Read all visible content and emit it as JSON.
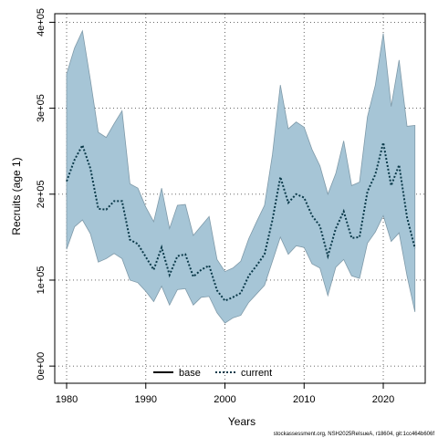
{
  "chart_data": {
    "type": "line",
    "xlabel": "Years",
    "ylabel": "Recruits (age 1)",
    "xlim": [
      1978.5,
      2025.3
    ],
    "ylim": [
      -20000,
      410000
    ],
    "x_ticks": [
      1980,
      1990,
      2000,
      2010,
      2020
    ],
    "x_tick_labels": [
      "1980",
      "1990",
      "2000",
      "2010",
      "2020"
    ],
    "y_ticks": [
      0,
      100000,
      200000,
      300000,
      400000
    ],
    "y_tick_labels": [
      "0e+00",
      "1e+05",
      "2e+05",
      "3e+05",
      "4e+05"
    ],
    "grid": true,
    "legend_position": "bottom-center",
    "footer_note": "stockassessment.org, NSH2025ReIsueA, r18604, git:1cc464b606f",
    "colors": {
      "band_fill": "#a6c5d6",
      "band_stroke": "#7f9aa9",
      "current_line": "#0b3a4a",
      "base_line": "#000000",
      "grid": "#555555"
    },
    "series": [
      {
        "name": "base",
        "style": "solid",
        "x": [],
        "y": []
      },
      {
        "name": "current",
        "style": "dotted",
        "x": [
          1980,
          1981,
          1982,
          1983,
          1984,
          1985,
          1986,
          1987,
          1988,
          1989,
          1990,
          1991,
          1992,
          1993,
          1994,
          1995,
          1996,
          1997,
          1998,
          1999,
          2000,
          2001,
          2002,
          2003,
          2004,
          2005,
          2006,
          2007,
          2008,
          2009,
          2010,
          2011,
          2012,
          2013,
          2014,
          2015,
          2016,
          2017,
          2018,
          2019,
          2020,
          2021,
          2022,
          2023,
          2024
        ],
        "y": [
          215000,
          240000,
          257000,
          230000,
          183000,
          182000,
          192000,
          192000,
          147000,
          142000,
          127000,
          112000,
          138000,
          106000,
          128000,
          130000,
          104000,
          112000,
          117000,
          88000,
          76000,
          80000,
          85000,
          105000,
          117000,
          130000,
          170000,
          220000,
          190000,
          200000,
          196000,
          175000,
          163000,
          128000,
          160000,
          180000,
          149000,
          150000,
          203000,
          223000,
          260000,
          210000,
          234000,
          173000,
          137000
        ]
      }
    ],
    "band": {
      "x": [
        1980,
        1981,
        1982,
        1983,
        1984,
        1985,
        1986,
        1987,
        1988,
        1989,
        1990,
        1991,
        1992,
        1993,
        1994,
        1995,
        1996,
        1997,
        1998,
        1999,
        2000,
        2001,
        2002,
        2003,
        2004,
        2005,
        2006,
        2007,
        2008,
        2009,
        2010,
        2011,
        2012,
        2013,
        2014,
        2015,
        2016,
        2017,
        2018,
        2019,
        2020,
        2021,
        2022,
        2023,
        2024
      ],
      "upper": [
        340000,
        370000,
        390000,
        333000,
        272000,
        266000,
        282000,
        297000,
        212000,
        207000,
        185000,
        168000,
        207000,
        160000,
        187000,
        188000,
        152000,
        163000,
        174000,
        124000,
        110000,
        114000,
        122000,
        148000,
        168000,
        187000,
        246000,
        327000,
        276000,
        284000,
        278000,
        252000,
        233000,
        200000,
        224000,
        262000,
        210000,
        214000,
        290000,
        327000,
        387000,
        302000,
        356000,
        279000,
        280000
      ],
      "lower": [
        136000,
        162000,
        170000,
        154000,
        121000,
        125000,
        131000,
        125000,
        100000,
        97000,
        87000,
        75000,
        93000,
        71000,
        89000,
        90000,
        71000,
        80000,
        81000,
        62000,
        50000,
        56000,
        59000,
        74000,
        84000,
        94000,
        122000,
        150000,
        130000,
        140000,
        138000,
        119000,
        114000,
        82000,
        115000,
        124000,
        105000,
        102000,
        143000,
        156000,
        175000,
        145000,
        155000,
        105000,
        63000
      ]
    }
  }
}
